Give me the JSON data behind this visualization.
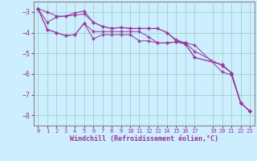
{
  "background_color": "#cceeff",
  "grid_color": "#99ccbb",
  "line_color": "#993399",
  "xlabel": "Windchill (Refroidissement éolien,°C)",
  "xlim": [
    -0.5,
    23.5
  ],
  "ylim": [
    -8.5,
    -2.5
  ],
  "yticks": [
    -8,
    -7,
    -6,
    -5,
    -4,
    -3
  ],
  "xticks": [
    0,
    1,
    2,
    3,
    4,
    5,
    6,
    7,
    8,
    9,
    10,
    11,
    12,
    13,
    14,
    15,
    16,
    17,
    19,
    20,
    21,
    22,
    23
  ],
  "line1_x": [
    0,
    1,
    2,
    3,
    4,
    5,
    6,
    7,
    8,
    9,
    10,
    11,
    12,
    13,
    14,
    15,
    16,
    17,
    20,
    21,
    22,
    23
  ],
  "line1_y": [
    -2.85,
    -3.0,
    -3.2,
    -3.2,
    -3.15,
    -3.1,
    -3.5,
    -3.7,
    -3.8,
    -3.75,
    -3.8,
    -3.8,
    -3.8,
    -3.8,
    -4.0,
    -4.35,
    -4.5,
    -4.6,
    -5.9,
    -6.05,
    -7.4,
    -7.8
  ],
  "line2_x": [
    0,
    1,
    2,
    3,
    4,
    5,
    6,
    7,
    8,
    9,
    10,
    11,
    12,
    13,
    14,
    15,
    16,
    17,
    20,
    21,
    22,
    23
  ],
  "line2_y": [
    -2.85,
    -3.5,
    -3.25,
    -3.2,
    -3.05,
    -2.95,
    -3.5,
    -3.7,
    -3.8,
    -3.75,
    -3.8,
    -3.8,
    -3.8,
    -3.8,
    -4.0,
    -4.4,
    -4.5,
    -4.9,
    -5.6,
    -5.95,
    -7.4,
    -7.8
  ],
  "line3_x": [
    0,
    1,
    2,
    3,
    4,
    5,
    6,
    7,
    8,
    9,
    10,
    11,
    12,
    13,
    14,
    15,
    16,
    17,
    20,
    21,
    22,
    23
  ],
  "line3_y": [
    -2.85,
    -3.85,
    -4.0,
    -4.15,
    -4.1,
    -3.55,
    -3.95,
    -3.95,
    -3.95,
    -3.95,
    -3.95,
    -3.95,
    -4.2,
    -4.5,
    -4.5,
    -4.45,
    -4.55,
    -5.2,
    -5.55,
    -5.95,
    -7.4,
    -7.8
  ],
  "line4_x": [
    0,
    1,
    2,
    3,
    4,
    5,
    6,
    7,
    8,
    9,
    10,
    11,
    12,
    13,
    14,
    15,
    16,
    17,
    20,
    21,
    22,
    23
  ],
  "line4_y": [
    -2.85,
    -3.85,
    -4.0,
    -4.15,
    -4.1,
    -3.55,
    -4.3,
    -4.1,
    -4.1,
    -4.1,
    -4.1,
    -4.4,
    -4.4,
    -4.5,
    -4.5,
    -4.45,
    -4.55,
    -5.2,
    -5.55,
    -5.95,
    -7.4,
    -7.8
  ]
}
